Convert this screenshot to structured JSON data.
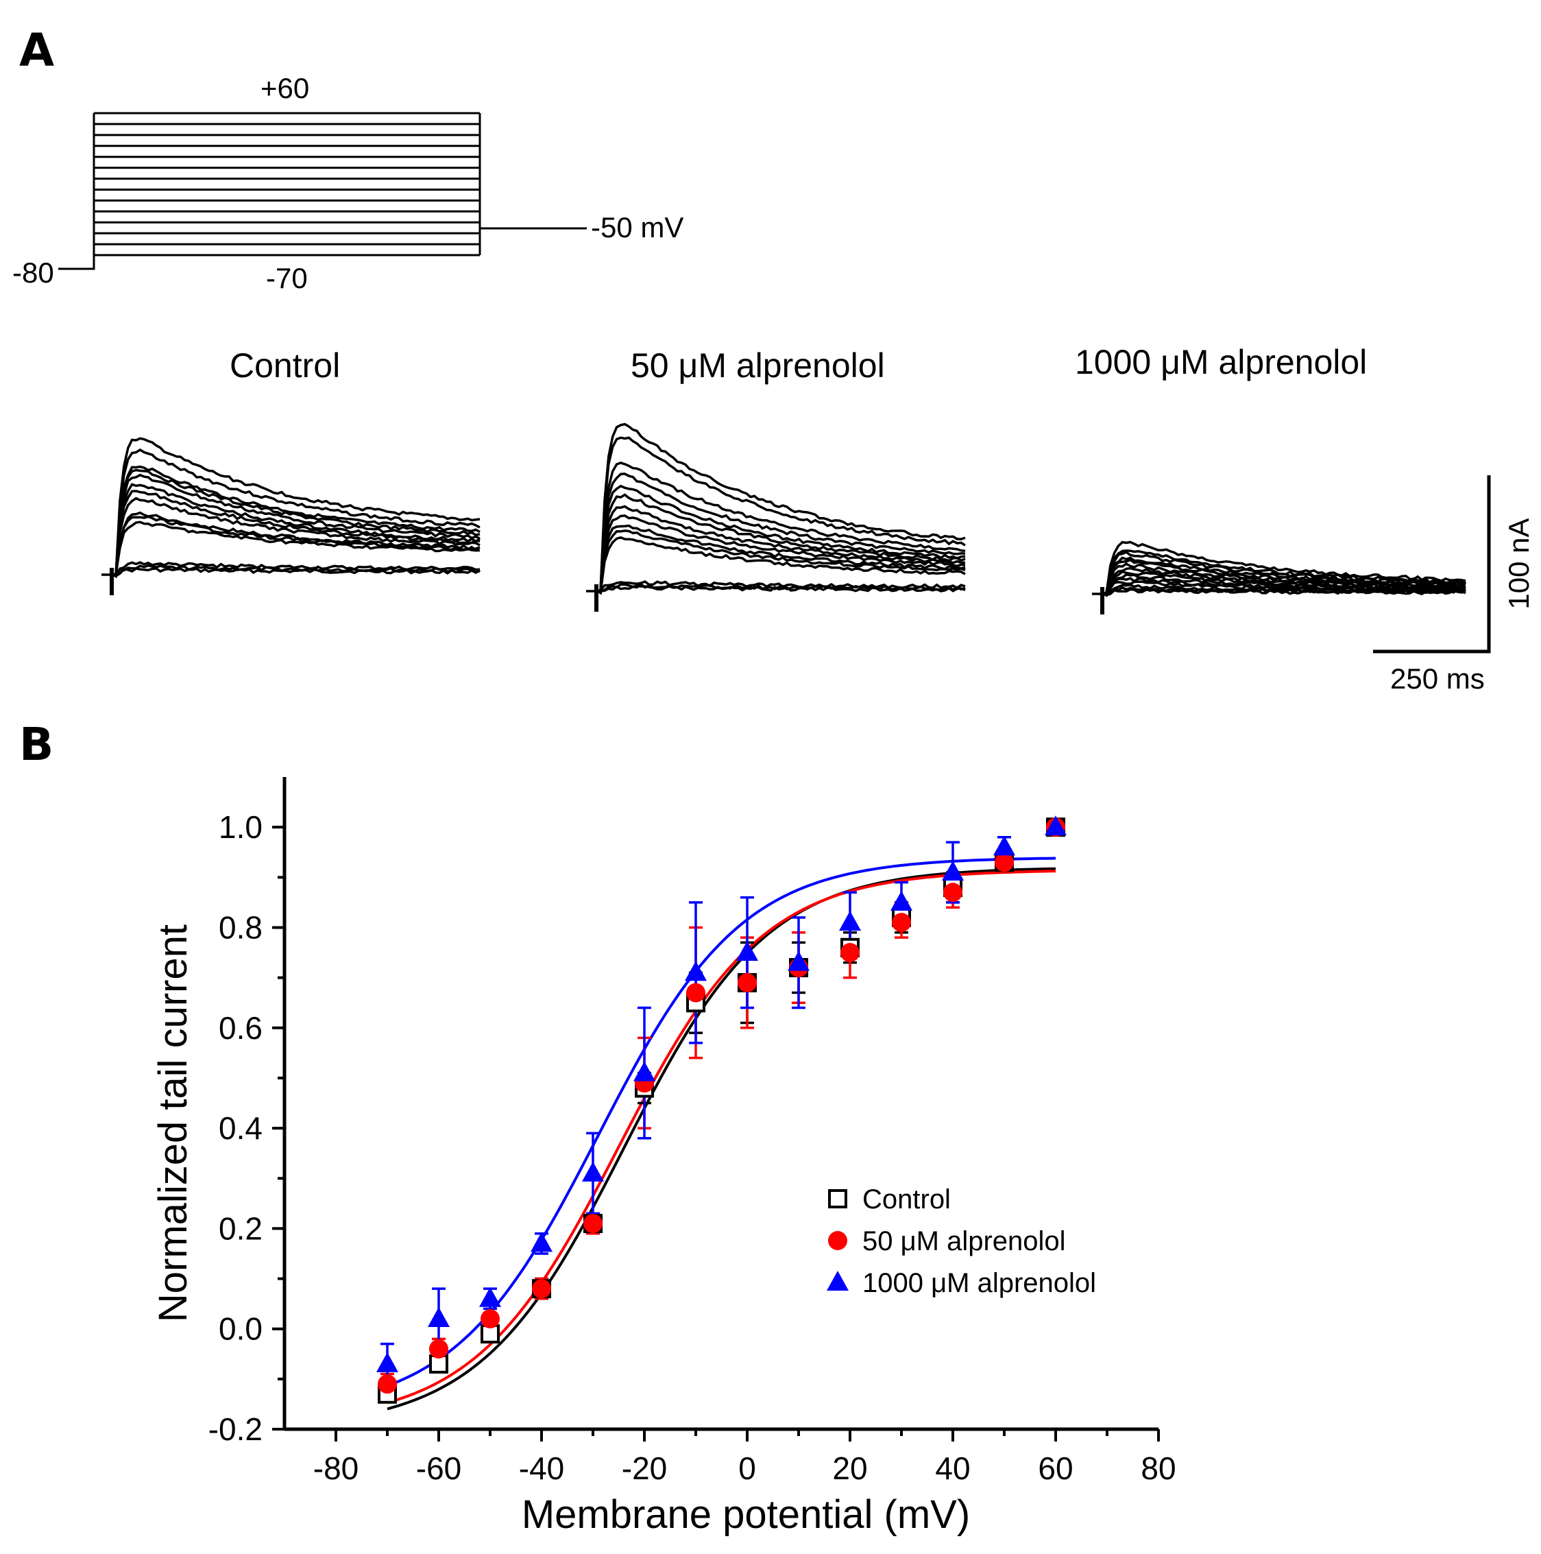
{
  "panel_a": {
    "letter": "A",
    "protocol": {
      "top_label": "+60",
      "bottom_label": "-70",
      "holding_label": "-80",
      "tail_label": "-50 mV",
      "n_steps": 14
    },
    "condition_labels": [
      "Control",
      "50 μM alprenolol",
      "1000 μM alprenolol"
    ],
    "scale_bar": {
      "current_label": "100 nA",
      "time_label": "250 ms"
    }
  },
  "panel_b": {
    "letter": "B"
  },
  "chart_data": {
    "type": "scatter",
    "xlabel": "Membrane potential (mV)",
    "ylabel": "Normalized tail current",
    "xlim": [
      -90,
      80
    ],
    "ylim": [
      -0.2,
      1.1
    ],
    "xticks": [
      -80,
      -60,
      -40,
      -20,
      0,
      20,
      40,
      60,
      80
    ],
    "yticks": [
      -0.2,
      0.0,
      0.2,
      0.4,
      0.6,
      0.8,
      1.0
    ],
    "ytick_labels": [
      "-0.2",
      "0.0",
      "0.2",
      "0.4",
      "0.6",
      "0.8",
      "1.0"
    ],
    "x": [
      -70,
      -60,
      -50,
      -40,
      -30,
      -20,
      -10,
      0,
      10,
      20,
      30,
      40,
      50,
      60
    ],
    "legend_position": "right",
    "series": [
      {
        "name": "Control",
        "color": "#000000",
        "marker": "open-square",
        "values": [
          -0.13,
          -0.07,
          -0.01,
          0.08,
          0.21,
          0.48,
          0.65,
          0.69,
          0.72,
          0.76,
          0.82,
          0.88,
          0.93,
          1.0
        ],
        "errors": [
          0.01,
          0.01,
          0.01,
          0.02,
          0.02,
          0.03,
          0.06,
          0.08,
          0.05,
          0.03,
          0.03,
          0.03,
          0.02,
          0.0
        ],
        "fit": {
          "top": 0.92,
          "bottom": -0.2,
          "v_half": -24,
          "k": 14
        }
      },
      {
        "name": "50 μM alprenolol",
        "color": "#ff0000",
        "marker": "filled-circle",
        "values": [
          -0.11,
          -0.04,
          0.02,
          0.08,
          0.21,
          0.49,
          0.67,
          0.69,
          0.72,
          0.75,
          0.81,
          0.87,
          0.93,
          1.0
        ],
        "errors": [
          0.02,
          0.02,
          0.01,
          0.02,
          0.02,
          0.09,
          0.13,
          0.09,
          0.07,
          0.05,
          0.03,
          0.03,
          0.02,
          0.0
        ],
        "fit": {
          "top": 0.915,
          "bottom": -0.19,
          "v_half": -25,
          "k": 14
        }
      },
      {
        "name": "1000 μM alprenolol",
        "color": "#0000ff",
        "marker": "filled-triangle",
        "values": [
          -0.07,
          0.02,
          0.06,
          0.17,
          0.31,
          0.51,
          0.71,
          0.75,
          0.73,
          0.81,
          0.85,
          0.91,
          0.96,
          1.0
        ],
        "errors": [
          0.04,
          0.06,
          0.02,
          0.02,
          0.08,
          0.13,
          0.14,
          0.11,
          0.09,
          0.06,
          0.04,
          0.06,
          0.02,
          0.0
        ],
        "fit": {
          "top": 0.94,
          "bottom": -0.17,
          "v_half": -29,
          "k": 14
        }
      }
    ]
  }
}
